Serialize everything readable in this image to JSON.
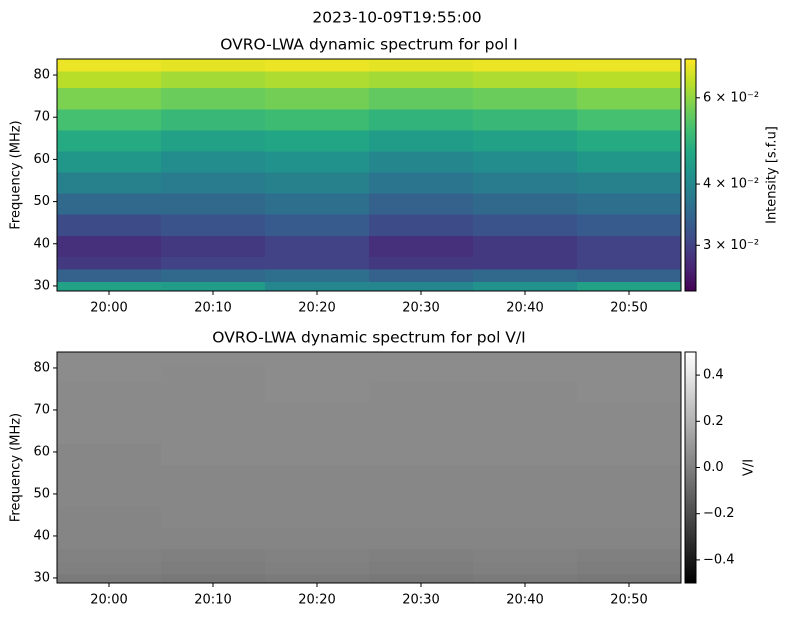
{
  "title": "2023-10-09T19:55:00",
  "chart_data": [
    {
      "type": "heatmap",
      "title": "OVRO-LWA dynamic spectrum for pol I",
      "ylabel": "Frequency (MHz)",
      "xlim": [
        "19:55",
        "20:55"
      ],
      "xticks": [
        "20:00",
        "20:10",
        "20:20",
        "20:30",
        "20:40",
        "20:50"
      ],
      "ylim": [
        28.8,
        83.8
      ],
      "yticks": [
        30,
        40,
        50,
        60,
        70,
        80
      ],
      "x": [
        "19:55",
        "20:05",
        "20:15",
        "20:25",
        "20:35",
        "20:45",
        "20:55"
      ],
      "y": [
        28.8,
        31,
        34,
        37,
        42,
        47,
        52,
        57,
        62,
        67,
        72,
        77,
        81,
        83.8
      ],
      "values": [
        [
          0.045,
          0.044,
          0.04,
          0.04,
          0.042,
          0.045
        ],
        [
          0.034,
          0.035,
          0.036,
          0.034,
          0.035,
          0.034
        ],
        [
          0.029,
          0.03,
          0.03,
          0.029,
          0.029,
          0.03
        ],
        [
          0.028,
          0.029,
          0.03,
          0.028,
          0.029,
          0.03
        ],
        [
          0.031,
          0.032,
          0.033,
          0.031,
          0.032,
          0.033
        ],
        [
          0.035,
          0.035,
          0.036,
          0.034,
          0.035,
          0.036
        ],
        [
          0.039,
          0.038,
          0.039,
          0.037,
          0.038,
          0.039
        ],
        [
          0.043,
          0.041,
          0.042,
          0.04,
          0.041,
          0.043
        ],
        [
          0.047,
          0.045,
          0.046,
          0.044,
          0.045,
          0.047
        ],
        [
          0.052,
          0.05,
          0.051,
          0.049,
          0.05,
          0.052
        ],
        [
          0.058,
          0.056,
          0.057,
          0.055,
          0.056,
          0.058
        ],
        [
          0.064,
          0.062,
          0.063,
          0.062,
          0.063,
          0.064
        ],
        [
          0.07,
          0.069,
          0.07,
          0.069,
          0.07,
          0.07
        ]
      ],
      "colorbar": {
        "label": "Intensity [s.f.u]",
        "colormap": "viridis",
        "scale": "log",
        "lim": [
          0.0242,
          0.072
        ],
        "ticks": [
          {
            "value": 0.03,
            "label": "3 × 10⁻²"
          },
          {
            "value": 0.04,
            "label": "4 × 10⁻²"
          },
          {
            "value": 0.06,
            "label": "6 × 10⁻²"
          }
        ]
      }
    },
    {
      "type": "heatmap",
      "title": "OVRO-LWA dynamic spectrum for pol V/I",
      "ylabel": "Frequency (MHz)",
      "xlim": [
        "19:55",
        "20:55"
      ],
      "xticks": [
        "20:00",
        "20:10",
        "20:20",
        "20:30",
        "20:40",
        "20:50"
      ],
      "ylim": [
        28.8,
        83.8
      ],
      "yticks": [
        30,
        40,
        50,
        60,
        70,
        80
      ],
      "x": [
        "19:55",
        "20:05",
        "20:15",
        "20:25",
        "20:35",
        "20:45",
        "20:55"
      ],
      "y": [
        28.8,
        31,
        34,
        37,
        42,
        47,
        52,
        57,
        62,
        67,
        72,
        77,
        81,
        83.8
      ],
      "values": [
        [
          -0.02,
          -0.03,
          -0.02,
          -0.03,
          -0.02,
          -0.03
        ],
        [
          0.0,
          -0.01,
          0.0,
          -0.01,
          0.0,
          -0.01
        ],
        [
          0.01,
          0.0,
          0.01,
          0.0,
          0.01,
          0.0
        ],
        [
          0.02,
          0.02,
          0.02,
          0.02,
          0.02,
          0.02
        ],
        [
          0.02,
          0.03,
          0.03,
          0.03,
          0.03,
          0.03
        ],
        [
          0.03,
          0.03,
          0.03,
          0.03,
          0.03,
          0.03
        ],
        [
          0.03,
          0.03,
          0.03,
          0.03,
          0.03,
          0.03
        ],
        [
          0.03,
          0.04,
          0.04,
          0.04,
          0.04,
          0.04
        ],
        [
          0.04,
          0.04,
          0.04,
          0.04,
          0.04,
          0.04
        ],
        [
          0.04,
          0.04,
          0.04,
          0.04,
          0.04,
          0.04
        ],
        [
          0.04,
          0.04,
          0.05,
          0.04,
          0.04,
          0.05
        ],
        [
          0.05,
          0.04,
          0.05,
          0.05,
          0.05,
          0.05
        ],
        [
          0.05,
          0.05,
          0.05,
          0.05,
          0.05,
          0.05
        ]
      ],
      "colorbar": {
        "label": "V/I",
        "colormap": "gray",
        "scale": "linear",
        "lim": [
          -0.5,
          0.5
        ],
        "ticks": [
          {
            "value": -0.4,
            "label": "−0.4"
          },
          {
            "value": -0.2,
            "label": "−0.2"
          },
          {
            "value": 0,
            "label": "0.0"
          },
          0.2,
          0.4
        ]
      }
    }
  ]
}
